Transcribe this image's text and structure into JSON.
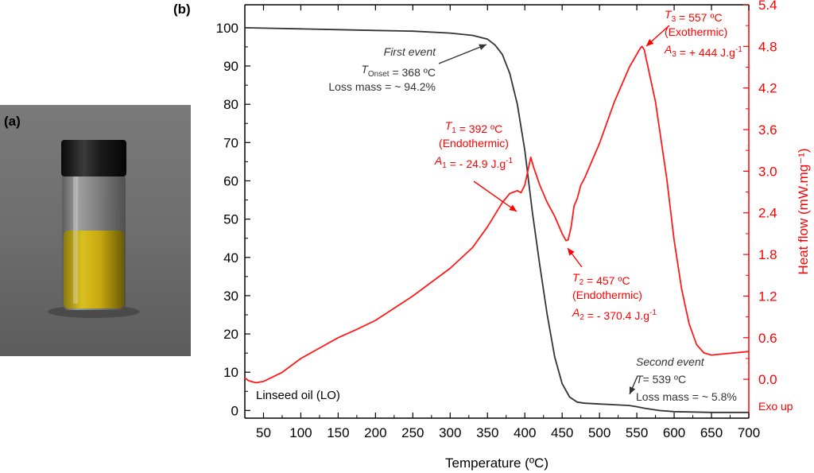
{
  "panel_a": {
    "label": "(a)"
  },
  "panel_b": {
    "label": "(b)"
  },
  "colors": {
    "tga": "#333333",
    "dsc": "#ff1a1a",
    "axis": "#000000",
    "right_axis": "#ff0000"
  },
  "chart_data": {
    "type": "line",
    "title": "",
    "xlabel": "Temperature (ºC)",
    "ylabel_left": "",
    "ylabel_right": "Heat flow (mW.mg⁻¹)",
    "xlim": [
      25,
      700
    ],
    "ylim_left": [
      -2,
      106
    ],
    "ylim_right": [
      -0.56,
      5.4
    ],
    "x_ticks": [
      50,
      100,
      150,
      200,
      250,
      300,
      350,
      400,
      450,
      500,
      550,
      600,
      650,
      700
    ],
    "y_left_ticks": [
      0,
      10,
      20,
      30,
      40,
      50,
      60,
      70,
      80,
      90,
      100
    ],
    "y_right_ticks": [
      "0.0",
      "0.6",
      "1.2",
      "1.8",
      "2.4",
      "3.0",
      "3.6",
      "4.2",
      "4.8",
      "5.4"
    ],
    "right_extra_label": "Exo up",
    "sample_label": "Linseed oil (LO)",
    "grid": false,
    "series": [
      {
        "axis": "left",
        "color": "#333333",
        "x": [
          25,
          50,
          100,
          150,
          200,
          250,
          300,
          330,
          350,
          360,
          370,
          380,
          390,
          400,
          410,
          420,
          430,
          440,
          450,
          460,
          470,
          480,
          500,
          520,
          540,
          550,
          560,
          580,
          600,
          650,
          700
        ],
        "y": [
          100,
          99.9,
          99.7,
          99.5,
          99.3,
          99.1,
          98.6,
          98,
          97,
          95.5,
          93,
          88,
          80,
          68,
          52,
          38,
          25,
          14,
          7,
          3.5,
          2.2,
          1.9,
          1.7,
          1.5,
          1.3,
          1,
          0.6,
          0,
          -0.3,
          -0.5,
          -0.5
        ]
      },
      {
        "axis": "right",
        "color": "#ff1a1a",
        "x": [
          25,
          30,
          40,
          50,
          75,
          100,
          125,
          150,
          175,
          200,
          250,
          300,
          330,
          350,
          370,
          380,
          385,
          390,
          395,
          400,
          405,
          408,
          412,
          420,
          430,
          440,
          450,
          455,
          458,
          462,
          466,
          470,
          475,
          480,
          500,
          520,
          540,
          555,
          557,
          560,
          575,
          590,
          600,
          610,
          620,
          630,
          640,
          650,
          700
        ],
        "y": [
          0.02,
          -0.02,
          -0.05,
          -0.03,
          0.1,
          0.3,
          0.45,
          0.6,
          0.72,
          0.85,
          1.2,
          1.6,
          1.9,
          2.2,
          2.55,
          2.68,
          2.7,
          2.72,
          2.69,
          2.8,
          3.05,
          3.2,
          3.05,
          2.8,
          2.55,
          2.35,
          2.1,
          2.0,
          2.01,
          2.2,
          2.5,
          2.6,
          2.8,
          2.9,
          3.4,
          4.0,
          4.5,
          4.78,
          4.8,
          4.75,
          4.0,
          2.9,
          2.0,
          1.3,
          0.8,
          0.5,
          0.38,
          0.35,
          0.4
        ]
      }
    ],
    "annotations": [
      {
        "lines": [
          "First event",
          "T_Onset = 368 ºC",
          "Loss mass = ~ 94.2%"
        ],
        "color": "#333333"
      },
      {
        "lines": [
          "T_1 = 392 ºC",
          "(Endothermic)",
          "A_1 = - 24.9 J.g^-1"
        ],
        "color": "#ff0000"
      },
      {
        "lines": [
          "T_2 = 457 ºC",
          "(Endothermic)",
          "A_2 = - 370.4 J.g^-1"
        ],
        "color": "#ff0000"
      },
      {
        "lines": [
          "T_3 = 557 ºC",
          "(Exothermic)",
          "A_3 = + 444 J.g^-1"
        ],
        "color": "#ff0000"
      },
      {
        "lines": [
          "Second event",
          "T= 539 ºC",
          "Loss mass = ~ 5.8%"
        ],
        "color": "#333333"
      }
    ]
  }
}
